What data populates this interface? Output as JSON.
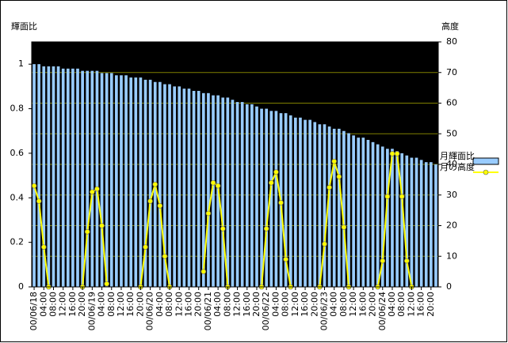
{
  "chart_data": {
    "type": "bar-line",
    "y_label": "輝面比",
    "y2_label": "高度",
    "categories": [
      "00/06/18",
      null,
      "04:00",
      null,
      "08:00",
      null,
      "12:00",
      null,
      "16:00",
      null,
      "20:00",
      null,
      "00/06/19",
      null,
      "04:00",
      null,
      "08:00",
      null,
      "12:00",
      null,
      "16:00",
      null,
      "20:00",
      null,
      "00/06/20",
      null,
      "04:00",
      null,
      "08:00",
      null,
      "12:00",
      null,
      "16:00",
      null,
      "20:00",
      null,
      "00/06/21",
      null,
      "04:00",
      null,
      "08:00",
      null,
      "12:00",
      null,
      "16:00",
      null,
      "20:00",
      null,
      "00/06/22",
      null,
      "04:00",
      null,
      "08:00",
      null,
      "12:00",
      null,
      "16:00",
      null,
      "20:00",
      null,
      "00/06/23",
      null,
      "04:00",
      null,
      "08:00",
      null,
      "12:00",
      null,
      "16:00",
      null,
      "20:00",
      null,
      "00/06/24",
      null,
      "04:00",
      null,
      "08:00",
      null,
      "12:00",
      null,
      "16:00",
      null,
      "20:00",
      null
    ],
    "series": [
      {
        "name": "月輝面比",
        "type": "bar",
        "color": "#99ccff",
        "values": [
          1.0,
          1.0,
          0.99,
          0.99,
          0.99,
          0.99,
          0.98,
          0.98,
          0.98,
          0.98,
          0.97,
          0.97,
          0.97,
          0.97,
          0.96,
          0.96,
          0.96,
          0.95,
          0.95,
          0.95,
          0.94,
          0.94,
          0.94,
          0.93,
          0.93,
          0.92,
          0.92,
          0.91,
          0.91,
          0.9,
          0.9,
          0.89,
          0.89,
          0.88,
          0.88,
          0.87,
          0.87,
          0.86,
          0.86,
          0.85,
          0.85,
          0.84,
          0.83,
          0.83,
          0.82,
          0.82,
          0.81,
          0.8,
          0.8,
          0.79,
          0.79,
          0.78,
          0.78,
          0.77,
          0.76,
          0.76,
          0.75,
          0.75,
          0.74,
          0.73,
          0.73,
          0.72,
          0.71,
          0.71,
          0.7,
          0.69,
          0.68,
          0.67,
          0.67,
          0.66,
          0.65,
          0.64,
          0.63,
          0.62,
          0.62,
          0.61,
          0.6,
          0.59,
          0.58,
          0.58,
          0.57,
          0.56,
          0.56,
          0.55
        ]
      },
      {
        "name": "月の高度",
        "type": "line",
        "axis": "y2",
        "color": "#ffff00",
        "values": [
          33,
          28,
          13,
          0,
          null,
          null,
          null,
          null,
          null,
          null,
          0,
          18,
          31,
          32,
          20,
          1,
          null,
          null,
          null,
          null,
          null,
          null,
          0,
          13,
          28,
          33.5,
          26.5,
          10,
          0,
          null,
          null,
          null,
          null,
          null,
          null,
          5,
          24,
          34,
          33,
          19,
          0,
          null,
          null,
          null,
          null,
          null,
          null,
          0,
          19,
          34,
          37.5,
          27.5,
          9,
          0,
          null,
          null,
          null,
          null,
          null,
          0,
          14,
          32.5,
          41,
          36,
          19.5,
          0,
          null,
          null,
          null,
          null,
          null,
          0,
          8.5,
          29.5,
          43.5,
          43.5,
          29.5,
          8.5,
          0,
          null,
          null,
          null,
          null,
          null
        ]
      }
    ],
    "ylim": [
      0,
      1.1
    ],
    "yticks": [
      0,
      0.2,
      0.4,
      0.6,
      0.8,
      1
    ],
    "y2lim": [
      0,
      80
    ],
    "y2ticks": [
      0,
      10,
      20,
      30,
      40,
      50,
      60,
      70,
      80
    ],
    "grid": true,
    "grid_color": "#808000",
    "background": "#000000",
    "legend": "right"
  }
}
